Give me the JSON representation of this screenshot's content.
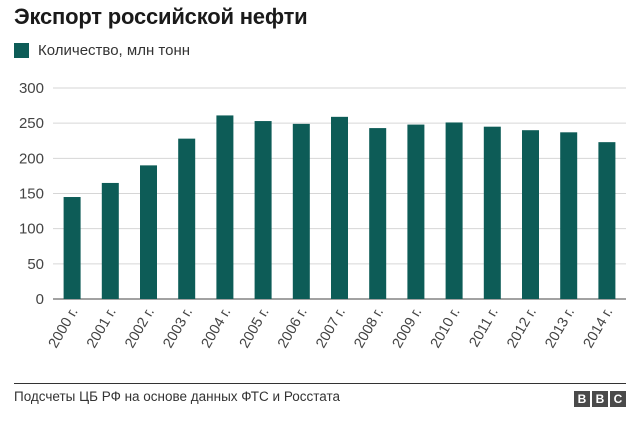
{
  "header": {
    "title": "Экспорт российской нефти"
  },
  "legend": {
    "label": "Количество, млн тонн"
  },
  "colors": {
    "bar": "#0d5c57",
    "grid": "#d6d6d6",
    "axis": "#444444"
  },
  "chart_data": {
    "type": "bar",
    "title": "Экспорт российской нефти",
    "xlabel": "",
    "ylabel": "",
    "ylim": [
      0,
      300
    ],
    "yticks": [
      0,
      50,
      100,
      150,
      200,
      250,
      300
    ],
    "grid": true,
    "legend_position": "top-left",
    "categories": [
      "2000 г.",
      "2001 г.",
      "2002 г.",
      "2003 г.",
      "2004 г.",
      "2005 г.",
      "2006 г.",
      "2007 г.",
      "2008 г.",
      "2009 г.",
      "2010 г.",
      "2011 г.",
      "2012 г.",
      "2013 г.",
      "2014 г."
    ],
    "series": [
      {
        "name": "Количество, млн тонн",
        "values": [
          145,
          165,
          190,
          228,
          261,
          253,
          249,
          259,
          243,
          248,
          251,
          245,
          240,
          237,
          223
        ]
      }
    ]
  },
  "footer": {
    "source": "Подсчеты ЦБ РФ на основе данных ФТС и Росстата",
    "logo_letters": [
      "B",
      "B",
      "C"
    ]
  }
}
